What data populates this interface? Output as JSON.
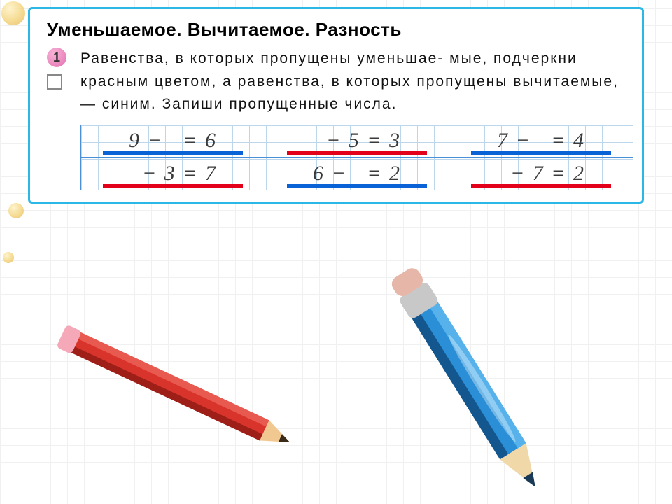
{
  "card": {
    "title": "Уменьшаемое.  Вычитаемое.  Разность",
    "task_number": "1",
    "task_text": "Равенства, в которых пропущены уменьшае-\nмые, подчеркни красным цветом, а равенства, в которых пропущены вычитаемые, — синим. Запиши пропущенные числа.",
    "border_color": "#2bb8e6",
    "badge_gradient": [
      "#f7b3d6",
      "#e46fb0"
    ],
    "title_fontsize": 26,
    "text_fontsize": 21
  },
  "grid": {
    "cell_bg": "#ffffff",
    "grid_line_color": "#bcd6ec",
    "border_color": "#4a90d9",
    "equation_font": "cursive",
    "equation_fontsize": 30,
    "equation_color": "#3a3a3a",
    "underline_colors": {
      "blue": "#0a63d6",
      "red": "#e3001b"
    },
    "rows": [
      [
        {
          "text": "9 −   = 6",
          "underline": "blue"
        },
        {
          "text": "  − 5 = 3",
          "underline": "red"
        },
        {
          "text": "7 −   = 4",
          "underline": "blue"
        }
      ],
      [
        {
          "text": "  − 3 = 7",
          "underline": "red"
        },
        {
          "text": "6 −   = 2",
          "underline": "blue"
        },
        {
          "text": "  − 7 = 2",
          "underline": "red"
        }
      ]
    ]
  },
  "pencils": {
    "red": {
      "body": "#d8342b",
      "dark": "#9e1f18",
      "eraser": "#f5a8b8",
      "wood": "#f0c890",
      "tip": "#3a2a1a"
    },
    "blue": {
      "body": "#2a8fd6",
      "dark": "#13578e",
      "ferrule": "#c8c8c8",
      "eraser": "#e6b7a8",
      "wood": "#f0d8a8",
      "tip": "#1a3a55"
    }
  },
  "colors": {
    "page_bg": "#ffffff",
    "page_grid": "#f0f0f0",
    "decor_dot": [
      "#fff2c4",
      "#f2d27a",
      "#e6b95a"
    ]
  }
}
